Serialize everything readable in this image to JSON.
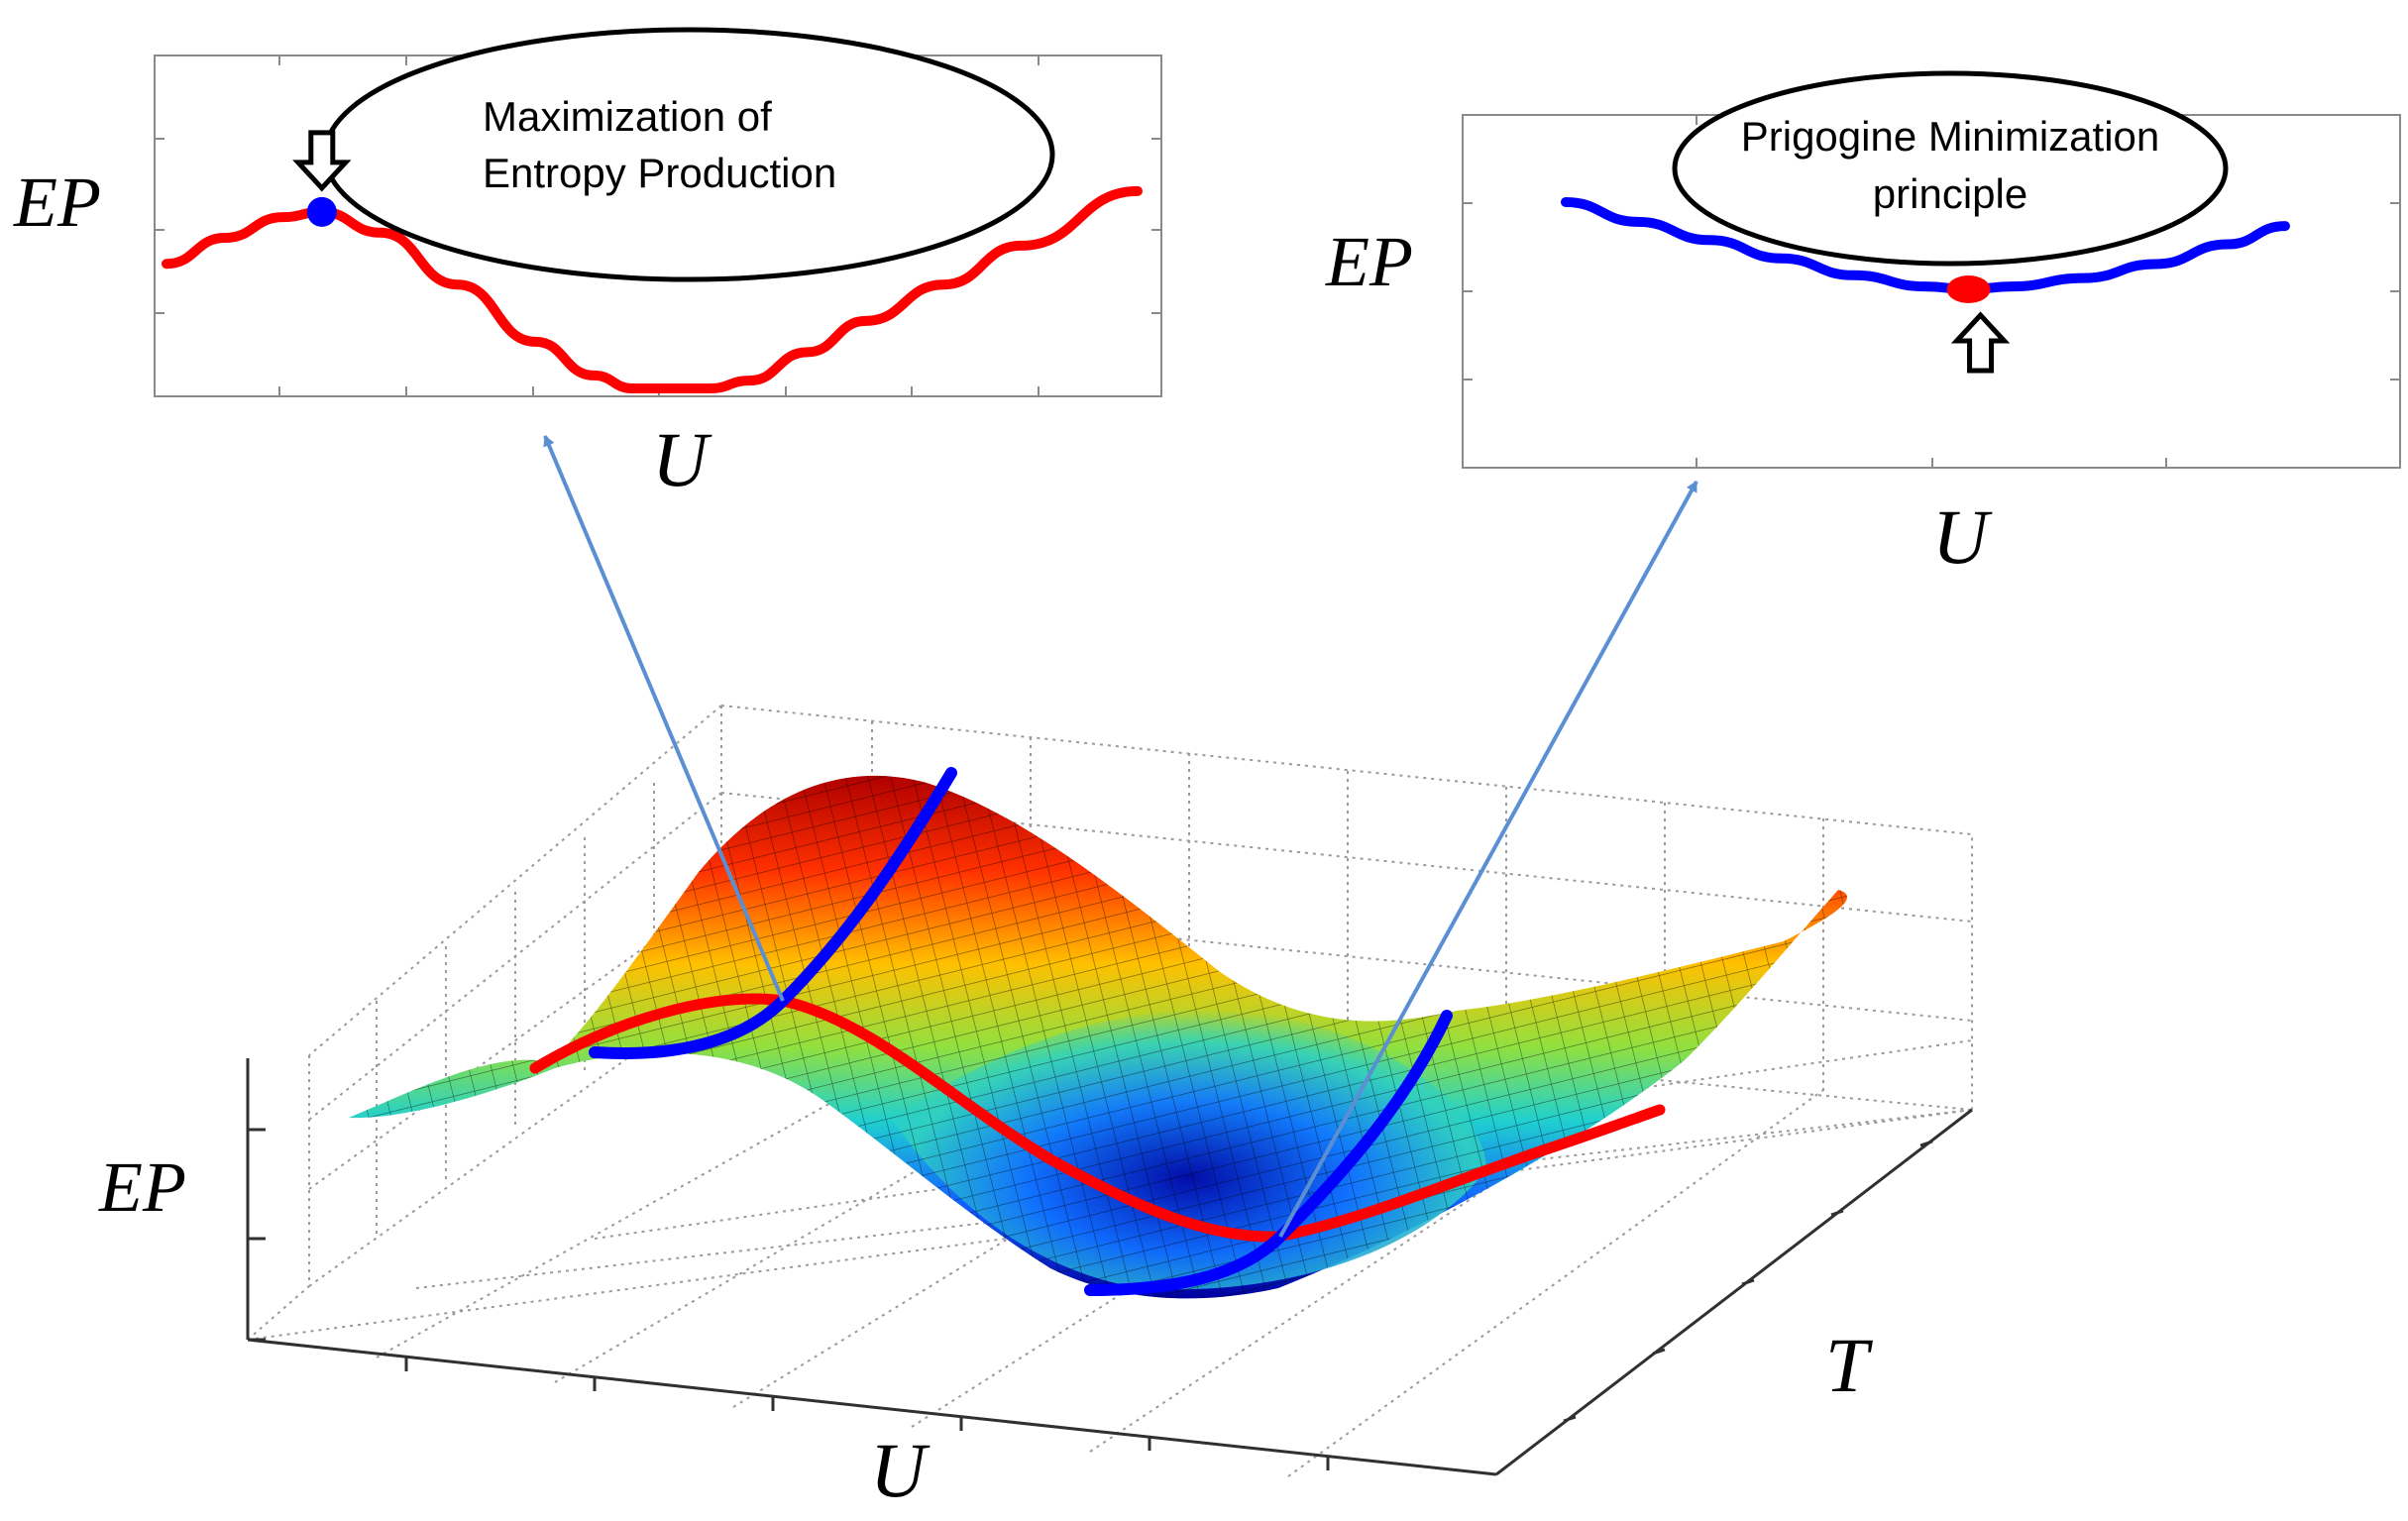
{
  "chart_data": [
    {
      "type": "line",
      "title": "Maximization of Entropy Production",
      "callout": [
        "Maximization of",
        "Entropy Production"
      ],
      "xlabel": "U",
      "ylabel": "EP",
      "grid": false,
      "series": [
        {
          "color": "#ff0000",
          "x": [
            0.0,
            0.06,
            0.12,
            0.16,
            0.22,
            0.3,
            0.38,
            0.44,
            0.48,
            0.52,
            0.56,
            0.6,
            0.66,
            0.72,
            0.8,
            0.88,
            1.0
          ],
          "y": [
            0.48,
            0.58,
            0.66,
            0.68,
            0.6,
            0.4,
            0.18,
            0.05,
            0.0,
            0.0,
            0.0,
            0.03,
            0.14,
            0.26,
            0.4,
            0.55,
            0.76
          ]
        }
      ],
      "marker": {
        "label": "maximum",
        "x": 0.16,
        "y": 0.68,
        "color": "#0000ff"
      },
      "ylim": [
        0,
        1
      ]
    },
    {
      "type": "line",
      "title": "Prigogine Minimization principle",
      "callout": [
        "Prigogine Minimization",
        "principle"
      ],
      "xlabel": "U",
      "ylabel": "EP",
      "grid": false,
      "series": [
        {
          "color": "#0000ff",
          "x": [
            0.0,
            0.1,
            0.2,
            0.3,
            0.4,
            0.5,
            0.56,
            0.62,
            0.72,
            0.82,
            0.92,
            1.0
          ],
          "y": [
            0.62,
            0.48,
            0.35,
            0.22,
            0.1,
            0.02,
            0.0,
            0.02,
            0.08,
            0.18,
            0.32,
            0.45
          ]
        }
      ],
      "marker": {
        "label": "minimum",
        "x": 0.56,
        "y": 0.0,
        "color": "#ff0000"
      },
      "ylim": [
        0,
        1
      ]
    },
    {
      "type": "surface",
      "xlabel": "U",
      "ylabel": "T",
      "zlabel": "EP",
      "grid": true,
      "colormap": "jet",
      "curves": [
        {
          "name": "",
          "color": "#ff0000",
          "along": "U"
        },
        {
          "name": "",
          "color": "#0000ff",
          "along": "T"
        },
        {
          "name": "",
          "color": "#0000ff",
          "along": "T"
        }
      ]
    }
  ],
  "colors": {
    "red_curve": "#ff0000",
    "blue_curve": "#0000ff",
    "connector_arrow": "#5b8fd4"
  },
  "icons": {
    "down_arrow": "down-arrow-icon",
    "up_arrow": "up-arrow-icon"
  }
}
